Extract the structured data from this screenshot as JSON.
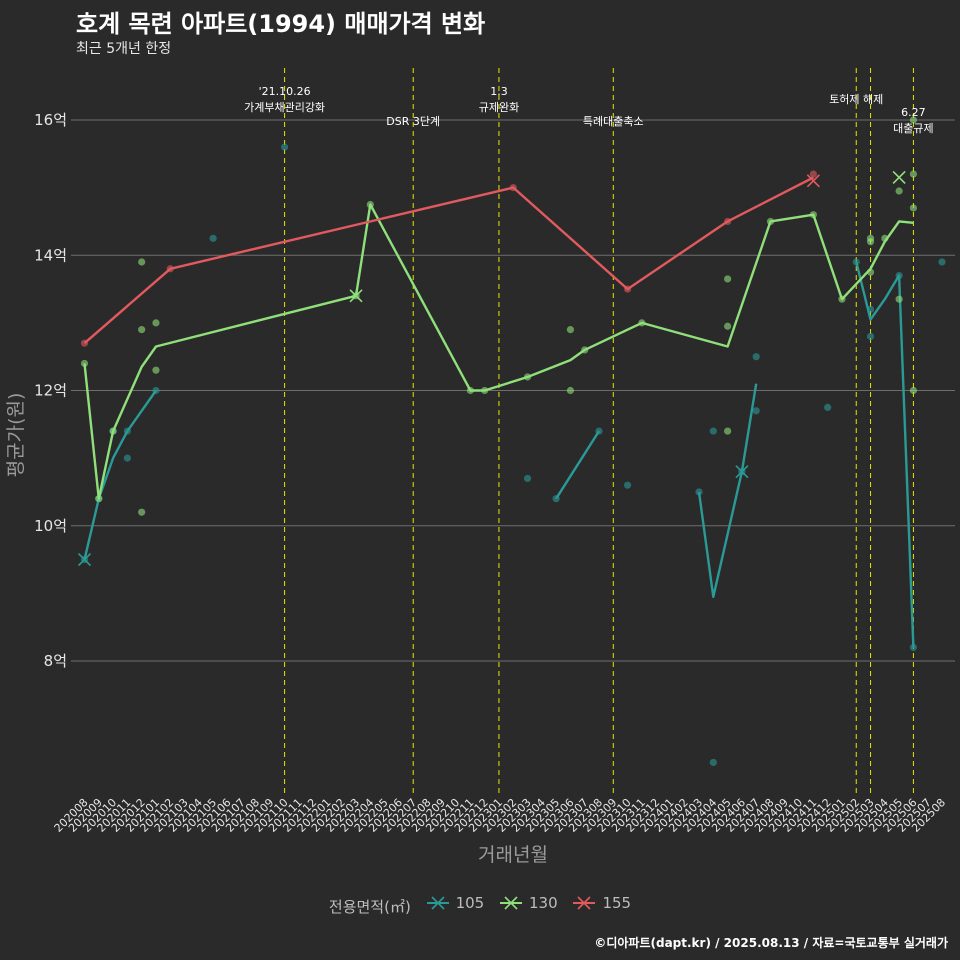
{
  "header": {
    "title": "호계 목련 아파트(1994) 매매가격 변화",
    "subtitle": "최근 5개년 한정"
  },
  "caption": "©디아파트(dapt.kr) / 2025.08.13 / 자료=국토교통부 실거래가",
  "legend": {
    "title": "전용면적(㎡)",
    "items": [
      {
        "label": "105",
        "color": "#2a9a96"
      },
      {
        "label": "130",
        "color": "#8fe07a"
      },
      {
        "label": "155",
        "color": "#e05a5e"
      }
    ]
  },
  "chart_data": {
    "type": "line",
    "xlabel": "거래년월",
    "ylabel": "평균가(원)",
    "ylim": [
      6.0,
      16.8
    ],
    "yticks": [
      {
        "v": 8,
        "label": "8억"
      },
      {
        "v": 10,
        "label": "10억"
      },
      {
        "v": 12,
        "label": "12억"
      },
      {
        "v": 14,
        "label": "14억"
      },
      {
        "v": 16,
        "label": "16억"
      }
    ],
    "categories": [
      "202008",
      "202009",
      "202010",
      "202011",
      "202012",
      "202101",
      "202102",
      "202103",
      "202104",
      "202105",
      "202106",
      "202107",
      "202108",
      "202109",
      "202110",
      "202111",
      "202112",
      "202201",
      "202202",
      "202203",
      "202204",
      "202205",
      "202206",
      "202207",
      "202208",
      "202209",
      "202210",
      "202211",
      "202212",
      "202301",
      "202302",
      "202303",
      "202304",
      "202305",
      "202306",
      "202307",
      "202308",
      "202309",
      "202310",
      "202311",
      "202312",
      "202401",
      "202402",
      "202403",
      "202404",
      "202405",
      "202406",
      "202407",
      "202408",
      "202409",
      "202410",
      "202411",
      "202412",
      "202501",
      "202502",
      "202503",
      "202504",
      "202505",
      "202506",
      "202507",
      "202508"
    ],
    "grid": true,
    "legend_position": "bottom",
    "events": [
      {
        "x": "202110",
        "label": "'21.10.26\n가계부채관리강화",
        "pos": "upper"
      },
      {
        "x": "202207",
        "label": "DSR 3단계",
        "pos": "lower"
      },
      {
        "x": "202301",
        "label": "1.3\n규제완화",
        "pos": "upper"
      },
      {
        "x": "202309",
        "label": "특례대출축소",
        "pos": "lower"
      },
      {
        "x": "202502",
        "label": "토허제 해제",
        "pos": "upper"
      },
      {
        "x": "202503",
        "label": "",
        "pos": "upper"
      },
      {
        "x": "202506",
        "label": "6.27\n대출규제",
        "pos": "lower"
      }
    ],
    "series": [
      {
        "name": "105",
        "color": "#2a9a96",
        "line": [
          [
            [
              "202008",
              9.5
            ],
            [
              "202009",
              10.4
            ],
            [
              "202010",
              11.0
            ],
            [
              "202011",
              11.4
            ],
            [
              "202012",
              11.7
            ],
            [
              "202101",
              12.0
            ]
          ],
          [
            [
              "202305",
              10.4
            ],
            [
              "202308",
              11.4
            ]
          ],
          [
            [
              "202403",
              10.5
            ],
            [
              "202404",
              8.95
            ],
            [
              "202406",
              10.8
            ],
            [
              "202407",
              12.1
            ]
          ],
          [
            [
              "202502",
              13.9
            ],
            [
              "202503",
              13.05
            ],
            [
              "202504",
              13.35
            ],
            [
              "202505",
              13.7
            ],
            [
              "202506",
              8.2
            ]
          ]
        ],
        "points": [
          [
            "202008",
            9.5
          ],
          [
            "202009",
            10.4
          ],
          [
            "202010",
            11.4
          ],
          [
            "202011",
            11.0
          ],
          [
            "202011",
            11.4
          ],
          [
            "202101",
            12.0
          ],
          [
            "202105",
            14.25
          ],
          [
            "202110",
            15.6
          ],
          [
            "202303",
            10.7
          ],
          [
            "202305",
            10.4
          ],
          [
            "202308",
            11.4
          ],
          [
            "202310",
            10.6
          ],
          [
            "202403",
            10.5
          ],
          [
            "202404",
            6.5
          ],
          [
            "202404",
            11.4
          ],
          [
            "202406",
            10.8
          ],
          [
            "202407",
            11.7
          ],
          [
            "202407",
            12.5
          ],
          [
            "202412",
            11.75
          ],
          [
            "202502",
            13.9
          ],
          [
            "202503",
            12.8
          ],
          [
            "202503",
            13.2
          ],
          [
            "202505",
            13.7
          ],
          [
            "202506",
            8.2
          ],
          [
            "202508",
            13.9
          ]
        ],
        "crosses": [
          [
            "202008",
            9.5
          ],
          [
            "202406",
            10.8
          ]
        ]
      },
      {
        "name": "130",
        "color": "#8fe07a",
        "line": [
          [
            [
              "202008",
              12.4
            ],
            [
              "202009",
              10.4
            ],
            [
              "202010",
              11.4
            ],
            [
              "202012",
              12.35
            ],
            [
              "202101",
              12.65
            ],
            [
              "202203",
              13.4
            ],
            [
              "202204",
              14.75
            ],
            [
              "202211",
              12.0
            ],
            [
              "202212",
              12.0
            ],
            [
              "202303",
              12.2
            ],
            [
              "202306",
              12.45
            ],
            [
              "202307",
              12.6
            ],
            [
              "202311",
              13.0
            ],
            [
              "202405",
              12.65
            ],
            [
              "202408",
              14.5
            ],
            [
              "202411",
              14.6
            ],
            [
              "202501",
              13.35
            ],
            [
              "202503",
              13.8
            ],
            [
              "202504",
              14.2
            ],
            [
              "202505",
              14.5
            ],
            [
              "202506",
              14.48
            ]
          ]
        ],
        "points": [
          [
            "202008",
            12.4
          ],
          [
            "202009",
            10.4
          ],
          [
            "202010",
            11.4
          ],
          [
            "202012",
            10.2
          ],
          [
            "202012",
            12.9
          ],
          [
            "202012",
            13.9
          ],
          [
            "202101",
            12.3
          ],
          [
            "202101",
            13.0
          ],
          [
            "202203",
            13.4
          ],
          [
            "202204",
            14.75
          ],
          [
            "202211",
            12.0
          ],
          [
            "202212",
            12.0
          ],
          [
            "202303",
            12.2
          ],
          [
            "202306",
            12.0
          ],
          [
            "202306",
            12.9
          ],
          [
            "202307",
            12.6
          ],
          [
            "202311",
            13.0
          ],
          [
            "202405",
            11.4
          ],
          [
            "202405",
            12.95
          ],
          [
            "202405",
            13.65
          ],
          [
            "202408",
            14.5
          ],
          [
            "202411",
            14.6
          ],
          [
            "202501",
            13.35
          ],
          [
            "202503",
            13.75
          ],
          [
            "202503",
            14.2
          ],
          [
            "202503",
            14.25
          ],
          [
            "202504",
            14.25
          ],
          [
            "202505",
            14.95
          ],
          [
            "202505",
            13.35
          ],
          [
            "202506",
            12.0
          ],
          [
            "202506",
            14.7
          ],
          [
            "202506",
            15.2
          ],
          [
            "202506",
            16.0
          ]
        ],
        "crosses": [
          [
            "202203",
            13.4
          ],
          [
            "202505",
            15.15
          ]
        ]
      },
      {
        "name": "155",
        "color": "#e05a5e",
        "line": [
          [
            [
              "202008",
              12.7
            ],
            [
              "202102",
              13.8
            ],
            [
              "202302",
              15.0
            ],
            [
              "202310",
              13.5
            ],
            [
              "202405",
              14.5
            ],
            [
              "202411",
              15.15
            ]
          ]
        ],
        "points": [
          [
            "202008",
            12.7
          ],
          [
            "202102",
            13.8
          ],
          [
            "202302",
            15.0
          ],
          [
            "202310",
            13.5
          ],
          [
            "202405",
            14.5
          ],
          [
            "202411",
            15.2
          ]
        ],
        "crosses": [
          [
            "202411",
            15.1
          ]
        ]
      }
    ]
  }
}
